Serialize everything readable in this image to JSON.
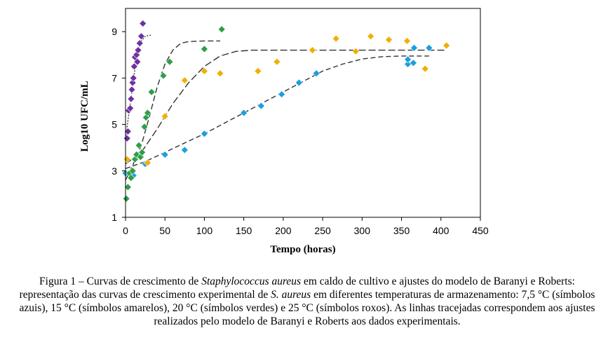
{
  "chart_data": {
    "type": "scatter",
    "xlabel": "Tempo (horas)",
    "ylabel": "Log10 UFC/mL",
    "xlim": [
      0,
      450
    ],
    "ylim": [
      1,
      10
    ],
    "xticks": [
      0,
      50,
      100,
      150,
      200,
      250,
      300,
      350,
      400,
      450
    ],
    "yticks": [
      1,
      3,
      5,
      7,
      9
    ],
    "grid": false,
    "legend": "none",
    "series": [
      {
        "color": "#1a9fe0",
        "marker": "diamond",
        "points": [
          [
            0,
            2.9
          ],
          [
            10,
            2.8
          ],
          [
            25,
            3.3
          ],
          [
            50,
            3.7
          ],
          [
            75,
            3.9
          ],
          [
            100,
            4.6
          ],
          [
            150,
            5.5
          ],
          [
            172,
            5.8
          ],
          [
            198,
            6.3
          ],
          [
            220,
            6.8
          ],
          [
            242,
            7.2
          ],
          [
            358,
            7.6
          ],
          [
            358,
            7.8
          ],
          [
            365,
            7.65
          ],
          [
            366,
            8.3
          ],
          [
            385,
            8.3
          ]
        ],
        "fit": [
          [
            0,
            3.1
          ],
          [
            25,
            3.4
          ],
          [
            50,
            3.8
          ],
          [
            75,
            4.2
          ],
          [
            100,
            4.6
          ],
          [
            125,
            5.05
          ],
          [
            150,
            5.5
          ],
          [
            175,
            5.95
          ],
          [
            200,
            6.4
          ],
          [
            225,
            6.85
          ],
          [
            250,
            7.3
          ],
          [
            275,
            7.6
          ],
          [
            300,
            7.82
          ],
          [
            325,
            7.92
          ],
          [
            350,
            7.95
          ],
          [
            385,
            7.95
          ]
        ]
      },
      {
        "color": "#f0b000",
        "marker": "diamond",
        "points": [
          [
            2,
            3.5
          ],
          [
            28,
            3.35
          ],
          [
            50,
            5.35
          ],
          [
            75,
            6.9
          ],
          [
            100,
            7.3
          ],
          [
            120,
            7.2
          ],
          [
            168,
            7.3
          ],
          [
            192,
            7.7
          ],
          [
            237,
            8.2
          ],
          [
            267,
            8.7
          ],
          [
            292,
            8.15
          ],
          [
            311,
            8.8
          ],
          [
            334,
            8.65
          ],
          [
            357,
            8.6
          ],
          [
            380,
            7.4
          ],
          [
            407,
            8.4
          ]
        ],
        "fit": [
          [
            0,
            3.3
          ],
          [
            20,
            3.8
          ],
          [
            40,
            4.8
          ],
          [
            60,
            5.9
          ],
          [
            80,
            6.8
          ],
          [
            100,
            7.5
          ],
          [
            120,
            7.95
          ],
          [
            140,
            8.15
          ],
          [
            160,
            8.2
          ],
          [
            200,
            8.2
          ],
          [
            300,
            8.2
          ],
          [
            405,
            8.2
          ]
        ]
      },
      {
        "color": "#2e9e48",
        "marker": "diamond",
        "points": [
          [
            1,
            1.8
          ],
          [
            3,
            2.3
          ],
          [
            5,
            2.9
          ],
          [
            7,
            2.7
          ],
          [
            9,
            3.0
          ],
          [
            12,
            3.5
          ],
          [
            14,
            3.7
          ],
          [
            17,
            4.1
          ],
          [
            19,
            3.6
          ],
          [
            21,
            3.8
          ],
          [
            24,
            4.9
          ],
          [
            26,
            5.3
          ],
          [
            28,
            5.5
          ],
          [
            33,
            6.4
          ],
          [
            48,
            7.1
          ],
          [
            56,
            7.7
          ],
          [
            100,
            8.25
          ],
          [
            122,
            9.1
          ]
        ],
        "fit": [
          [
            0,
            2.6
          ],
          [
            10,
            3.3
          ],
          [
            20,
            4.1
          ],
          [
            30,
            5.3
          ],
          [
            40,
            6.6
          ],
          [
            50,
            7.6
          ],
          [
            60,
            8.2
          ],
          [
            70,
            8.5
          ],
          [
            80,
            8.57
          ],
          [
            100,
            8.6
          ],
          [
            120,
            8.6
          ]
        ]
      },
      {
        "color": "#7030a0",
        "marker": "diamond",
        "points": [
          [
            2,
            4.4
          ],
          [
            3,
            4.7
          ],
          [
            4,
            5.6
          ],
          [
            6,
            5.7
          ],
          [
            7,
            6.1
          ],
          [
            8,
            6.5
          ],
          [
            9,
            6.8
          ],
          [
            10,
            7.0
          ],
          [
            11,
            7.5
          ],
          [
            12,
            7.9
          ],
          [
            14,
            8.0
          ],
          [
            15,
            7.7
          ],
          [
            16,
            8.2
          ],
          [
            18,
            8.5
          ],
          [
            20,
            8.8
          ],
          [
            22,
            9.35
          ]
        ],
        "fit": [
          [
            0,
            4.4
          ],
          [
            4,
            5.4
          ],
          [
            8,
            6.4
          ],
          [
            12,
            7.4
          ],
          [
            16,
            8.1
          ],
          [
            20,
            8.6
          ],
          [
            25,
            8.8
          ],
          [
            32,
            8.85
          ]
        ]
      }
    ]
  },
  "caption": {
    "part1": "Figura 1 – Curvas de crescimento de ",
    "species1": "Staphylococcus aureus",
    "part2": " em caldo de cultivo e ajustes do modelo de Baranyi e Roberts: representação das curvas de crescimento experimental de ",
    "species2": "S. aureus",
    "part3": " em diferentes temperaturas de armazenamento: 7,5 °C (símbolos azuis), 15 °C (símbolos amarelos), 20 °C (símbolos verdes) e 25 °C (símbolos roxos). As linhas tracejadas correspondem aos ajustes realizados pelo modelo de Baranyi e Roberts aos dados experimentais."
  }
}
